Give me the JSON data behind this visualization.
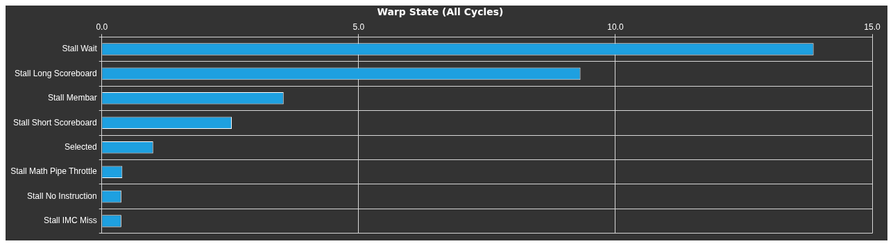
{
  "chart_data": {
    "type": "bar",
    "orientation": "horizontal",
    "title": "Warp State (All Cycles)",
    "categories": [
      "Stall Wait",
      "Stall Long Scoreboard",
      "Stall Membar",
      "Stall Short Scoreboard",
      "Selected",
      "Stall Math Pipe Throttle",
      "Stall No Instruction",
      "Stall IMC Miss"
    ],
    "values": [
      13.86,
      9.32,
      3.54,
      2.53,
      1.0,
      0.4,
      0.38,
      0.38
    ],
    "color": "#1ea0e0",
    "xlim": [
      0,
      15
    ],
    "xticks": [
      {
        "value": 0,
        "label": "0.0"
      },
      {
        "value": 5,
        "label": "5.0"
      },
      {
        "value": 10,
        "label": "10.0"
      },
      {
        "value": 15,
        "label": "15.0"
      }
    ],
    "grid": true
  }
}
